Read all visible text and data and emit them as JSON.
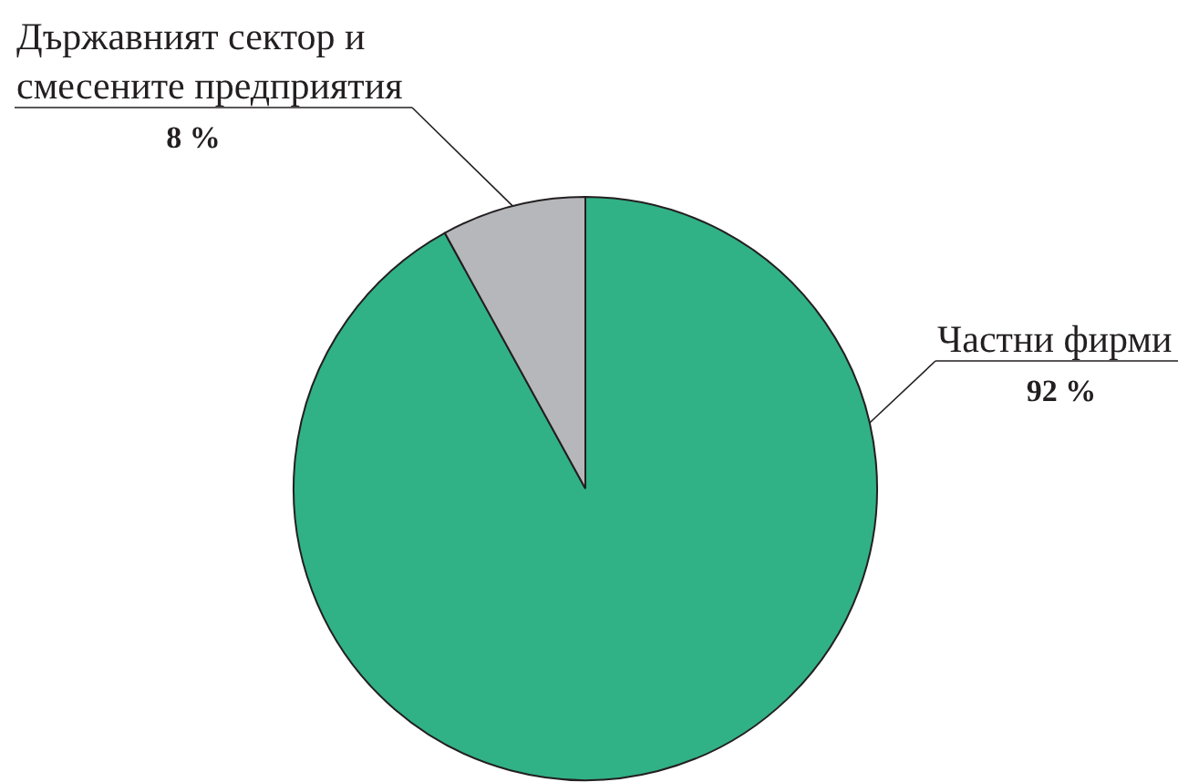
{
  "chart_data": {
    "type": "pie",
    "categories": [
      "Частни фирми",
      "Държавният сектор и смесените предприятия"
    ],
    "values": [
      92,
      8
    ],
    "colors": [
      "#31b186",
      "#b6b7bb"
    ],
    "value_labels": [
      "92 %",
      "8 %"
    ]
  }
}
